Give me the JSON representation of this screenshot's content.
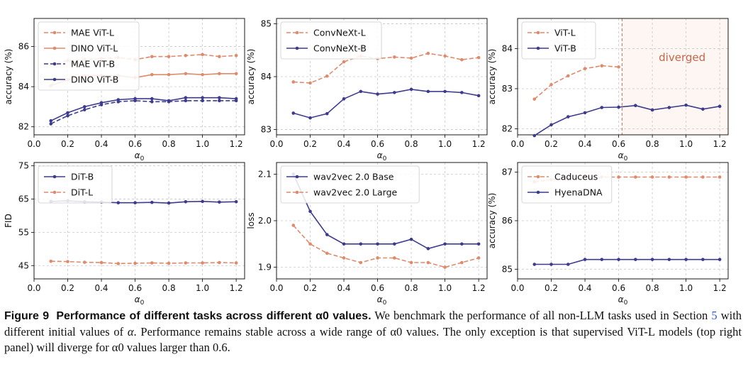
{
  "colors": {
    "orange": "#e08a6c",
    "purple": "#3d3b8e",
    "grid": "#c8c8c8",
    "diverged_fill": "#fdf6f2",
    "diverged_text": "#c8664a"
  },
  "chart_data": [
    {
      "type": "line",
      "title": "",
      "xlabel": "α0",
      "ylabel": "accuracy (%)",
      "xlim": [
        0.0,
        1.25
      ],
      "ylim": [
        81.6,
        87.4
      ],
      "xticks": [
        "0.0",
        "0.2",
        "0.4",
        "0.6",
        "0.8",
        "1.0",
        "1.2"
      ],
      "xtick_values": [
        0,
        0.2,
        0.4,
        0.6,
        0.8,
        1.0,
        1.2
      ],
      "yticks": [
        "82",
        "84",
        "86"
      ],
      "ytick_values": [
        82,
        84,
        86
      ],
      "x": [
        0.1,
        0.2,
        0.3,
        0.4,
        0.5,
        0.6,
        0.7,
        0.8,
        0.9,
        1.0,
        1.1,
        1.2
      ],
      "legend_position": "top-left",
      "series": [
        {
          "name": "MAE ViT-L",
          "color": "orange",
          "dashed": true,
          "values": [
            85.1,
            85.3,
            85.35,
            85.4,
            85.45,
            85.35,
            85.5,
            85.5,
            85.55,
            85.6,
            85.5,
            85.55
          ]
        },
        {
          "name": "DINO ViT-L",
          "color": "orange",
          "dashed": false,
          "values": [
            84.05,
            84.35,
            84.55,
            84.55,
            84.55,
            84.45,
            84.6,
            84.6,
            84.65,
            84.6,
            84.65,
            84.65
          ]
        },
        {
          "name": "MAE ViT-B",
          "color": "purple",
          "dashed": true,
          "values": [
            82.15,
            82.55,
            82.85,
            83.1,
            83.25,
            83.3,
            83.25,
            83.25,
            83.3,
            83.3,
            83.3,
            83.3
          ]
        },
        {
          "name": "DINO ViT-B",
          "color": "purple",
          "dashed": false,
          "values": [
            82.3,
            82.7,
            83.0,
            83.2,
            83.35,
            83.4,
            83.4,
            83.3,
            83.45,
            83.45,
            83.45,
            83.4
          ]
        }
      ]
    },
    {
      "type": "line",
      "title": "",
      "xlabel": "α0",
      "ylabel": "accuracy (%)",
      "xlim": [
        0.0,
        1.25
      ],
      "ylim": [
        82.9,
        85.1
      ],
      "xticks": [
        "0.0",
        "0.2",
        "0.4",
        "0.6",
        "0.8",
        "1.0",
        "1.2"
      ],
      "xtick_values": [
        0,
        0.2,
        0.4,
        0.6,
        0.8,
        1.0,
        1.2
      ],
      "yticks": [
        "83",
        "84",
        "85"
      ],
      "ytick_values": [
        83,
        84,
        85
      ],
      "x": [
        0.1,
        0.2,
        0.3,
        0.4,
        0.5,
        0.6,
        0.7,
        0.8,
        0.9,
        1.0,
        1.1,
        1.2
      ],
      "legend_position": "top-left",
      "series": [
        {
          "name": "ConvNeXt-L",
          "color": "orange",
          "dashed": true,
          "values": [
            83.9,
            83.88,
            84.01,
            84.28,
            84.39,
            84.34,
            84.37,
            84.35,
            84.44,
            84.39,
            84.32,
            84.36
          ]
        },
        {
          "name": "ConvNeXt-B",
          "color": "purple",
          "dashed": false,
          "values": [
            83.31,
            83.22,
            83.3,
            83.58,
            83.72,
            83.67,
            83.7,
            83.76,
            83.72,
            83.72,
            83.7,
            83.64
          ]
        }
      ]
    },
    {
      "type": "line",
      "title": "",
      "xlabel": "α0",
      "ylabel": "accuracy (%)",
      "xlim": [
        0.0,
        1.25
      ],
      "ylim": [
        81.85,
        84.75
      ],
      "xticks": [
        "0.0",
        "0.2",
        "0.4",
        "0.6",
        "0.8",
        "1.0",
        "1.2"
      ],
      "xtick_values": [
        0,
        0.2,
        0.4,
        0.6,
        0.8,
        1.0,
        1.2
      ],
      "yticks": [
        "82",
        "83",
        "84"
      ],
      "ytick_values": [
        82,
        83,
        84
      ],
      "x": [
        0.1,
        0.2,
        0.3,
        0.4,
        0.5,
        0.6,
        0.7,
        0.8,
        0.9,
        1.0,
        1.1,
        1.2
      ],
      "legend_position": "top-left",
      "annotation": {
        "text": "diverged",
        "x_start": 0.62
      },
      "series": [
        {
          "name": "ViT-L",
          "color": "orange",
          "dashed": true,
          "x": [
            0.1,
            0.2,
            0.3,
            0.4,
            0.5,
            0.6
          ],
          "values": [
            82.74,
            83.1,
            83.32,
            83.5,
            83.57,
            83.54
          ]
        },
        {
          "name": "ViT-B",
          "color": "purple",
          "dashed": false,
          "values": [
            81.83,
            82.1,
            82.3,
            82.4,
            82.53,
            82.54,
            82.58,
            82.47,
            82.53,
            82.59,
            82.49,
            82.56
          ]
        }
      ]
    },
    {
      "type": "line",
      "title": "",
      "xlabel": "α0",
      "ylabel": "FID",
      "xlim": [
        0.0,
        1.25
      ],
      "ylim": [
        41,
        76
      ],
      "xticks": [
        "0.0",
        "0.2",
        "0.4",
        "0.6",
        "0.8",
        "1.0",
        "1.2"
      ],
      "xtick_values": [
        0,
        0.2,
        0.4,
        0.6,
        0.8,
        1.0,
        1.2
      ],
      "yticks": [
        "45",
        "55",
        "65",
        "75"
      ],
      "ytick_values": [
        45,
        55,
        65,
        75
      ],
      "x": [
        0.1,
        0.2,
        0.3,
        0.4,
        0.5,
        0.6,
        0.7,
        0.8,
        0.9,
        1.0,
        1.1,
        1.2
      ],
      "legend_position": "top-left",
      "series": [
        {
          "name": "DiT-B",
          "color": "purple",
          "dashed": false,
          "values": [
            64.3,
            64.5,
            64.2,
            64.1,
            63.9,
            63.9,
            64.0,
            63.8,
            64.2,
            64.3,
            64.1,
            64.2
          ]
        },
        {
          "name": "DiT-L",
          "color": "orange",
          "dashed": true,
          "values": [
            46.3,
            46.2,
            46.0,
            45.9,
            45.6,
            45.7,
            45.8,
            45.7,
            45.8,
            45.8,
            45.9,
            45.8
          ]
        }
      ]
    },
    {
      "type": "line",
      "title": "",
      "xlabel": "α0",
      "ylabel": "loss",
      "xlim": [
        0.0,
        1.25
      ],
      "ylim": [
        1.875,
        2.125
      ],
      "xticks": [
        "0.0",
        "0.2",
        "0.4",
        "0.6",
        "0.8",
        "1.0",
        "1.2"
      ],
      "xtick_values": [
        0,
        0.2,
        0.4,
        0.6,
        0.8,
        1.0,
        1.2
      ],
      "yticks": [
        "1.9",
        "2.0",
        "2.1"
      ],
      "ytick_values": [
        1.9,
        2.0,
        2.1
      ],
      "x": [
        0.1,
        0.2,
        0.3,
        0.4,
        0.5,
        0.6,
        0.7,
        0.8,
        0.9,
        1.0,
        1.1,
        1.2
      ],
      "legend_position": "top-left",
      "series": [
        {
          "name": "wav2vec 2.0 Base",
          "color": "purple",
          "dashed": false,
          "values": [
            2.1,
            2.02,
            1.97,
            1.95,
            1.95,
            1.95,
            1.95,
            1.96,
            1.94,
            1.95,
            1.95,
            1.95
          ]
        },
        {
          "name": "wav2vec 2.0 Large",
          "color": "orange",
          "dashed": true,
          "values": [
            1.99,
            1.95,
            1.93,
            1.92,
            1.91,
            1.92,
            1.92,
            1.91,
            1.91,
            1.9,
            1.91,
            1.92
          ]
        }
      ]
    },
    {
      "type": "line",
      "title": "",
      "xlabel": "α0",
      "ylabel": "accuracy (%)",
      "xlim": [
        0.0,
        1.25
      ],
      "ylim": [
        84.8,
        87.2
      ],
      "xticks": [
        "0.0",
        "0.2",
        "0.4",
        "0.6",
        "0.8",
        "1.0",
        "1.2"
      ],
      "xtick_values": [
        0,
        0.2,
        0.4,
        0.6,
        0.8,
        1.0,
        1.2
      ],
      "yticks": [
        "85",
        "86",
        "87"
      ],
      "ytick_values": [
        85,
        86,
        87
      ],
      "x": [
        0.1,
        0.2,
        0.3,
        0.4,
        0.5,
        0.6,
        0.7,
        0.8,
        0.9,
        1.0,
        1.1,
        1.2
      ],
      "legend_position": "top-left",
      "series": [
        {
          "name": "Caduceus",
          "color": "orange",
          "dashed": true,
          "values": [
            86.8,
            86.85,
            86.85,
            86.9,
            86.9,
            86.9,
            86.9,
            86.9,
            86.9,
            86.9,
            86.9,
            86.9
          ]
        },
        {
          "name": "HyenaDNA",
          "color": "purple",
          "dashed": false,
          "values": [
            85.1,
            85.1,
            85.1,
            85.2,
            85.2,
            85.2,
            85.2,
            85.2,
            85.2,
            85.2,
            85.2,
            85.2
          ]
        }
      ]
    }
  ],
  "caption": {
    "label": "Figure 9",
    "title": "Performance of different tasks across different α0 values.",
    "text_1": "We benchmark the performance of all non-LLM tasks used in Section",
    "section_ref": "5",
    "text_2": "with different initial values of",
    "alpha": "α",
    "text_3": ". Performance remains stable across a wide range of α0 values. The only exception is that supervised ViT-L models (top right panel) will diverge for α0 values larger than 0.6."
  }
}
